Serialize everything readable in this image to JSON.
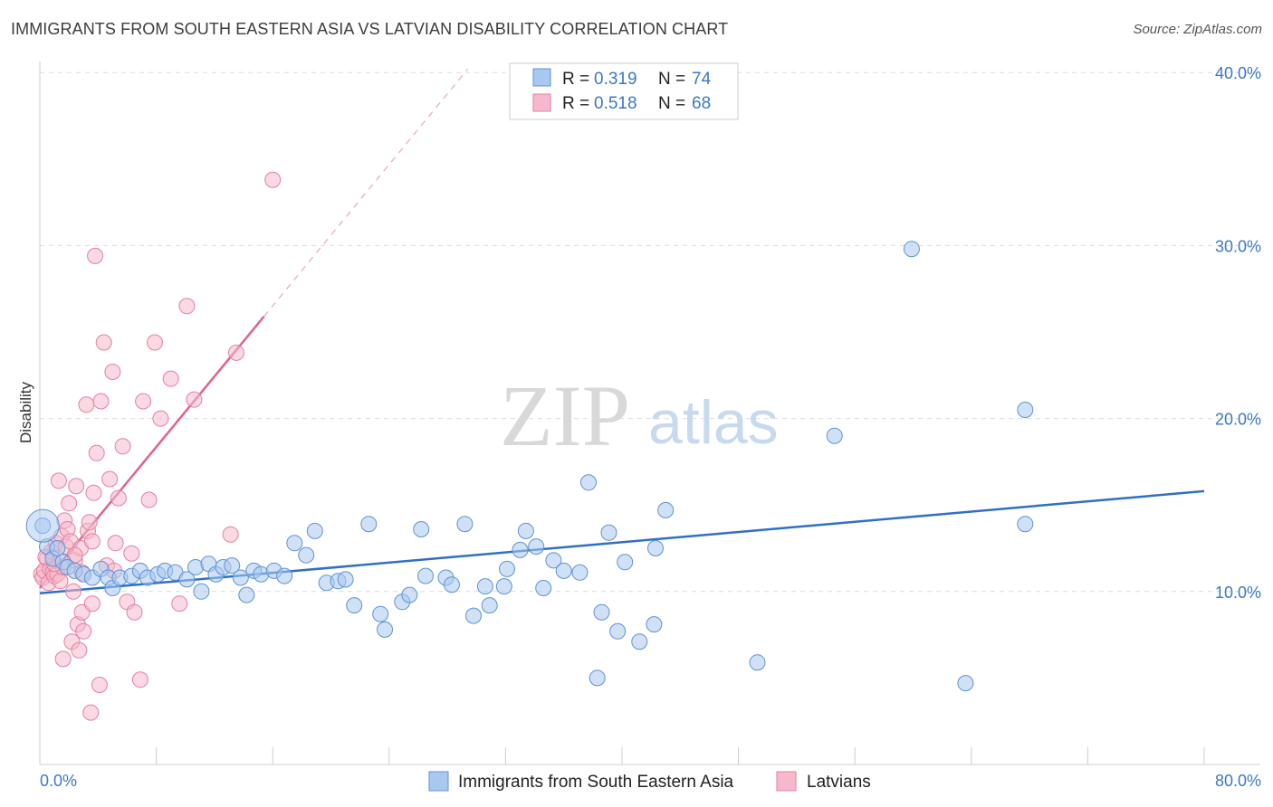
{
  "header": {
    "title": "IMMIGRANTS FROM SOUTH EASTERN ASIA VS LATVIAN DISABILITY CORRELATION CHART",
    "source": "Source: ZipAtlas.com"
  },
  "watermark": {
    "part1": "ZIP",
    "part2": "atlas"
  },
  "legend_top": {
    "rows": [
      {
        "r_label": "R = ",
        "r_value": "0.319",
        "n_label": "N = ",
        "n_value": "74"
      },
      {
        "r_label": "R = ",
        "r_value": "0.518",
        "n_label": "N = ",
        "n_value": "68"
      }
    ]
  },
  "colors": {
    "blue_fill": "#a9c8ef",
    "blue_stroke": "#5d93d6",
    "blue_line": "#2f6fc9",
    "pink_fill": "#f6b9cc",
    "pink_stroke": "#e57fa1",
    "pink_line": "#e0628d",
    "grid": "#dcdcdc",
    "tick_text": "#3a78c9"
  },
  "chart_data": {
    "type": "scatter",
    "title": "IMMIGRANTS FROM SOUTH EASTERN ASIA VS LATVIAN DISABILITY CORRELATION CHART",
    "xlabel": "",
    "ylabel": "Disability",
    "xlim": [
      0,
      80
    ],
    "ylim": [
      0,
      42
    ],
    "x_tick_labels": [
      "0.0%",
      "80.0%"
    ],
    "y_ticks": [
      10,
      20,
      30,
      40
    ],
    "y_tick_labels": [
      "10.0%",
      "20.0%",
      "30.0%",
      "40.0%"
    ],
    "grid": true,
    "legend_position": "bottom",
    "series": [
      {
        "name": "Immigrants from South Eastern Asia",
        "color": "#a9c8ef",
        "trend": {
          "x": [
            0,
            80
          ],
          "y": [
            9.9,
            15.8
          ]
        },
        "points": [
          [
            0.2,
            13.8
          ],
          [
            0.5,
            12.6
          ],
          [
            0.9,
            11.9
          ],
          [
            1.2,
            12.5
          ],
          [
            1.6,
            11.7
          ],
          [
            1.9,
            11.4
          ],
          [
            2.4,
            11.2
          ],
          [
            3.0,
            11.0
          ],
          [
            3.6,
            10.8
          ],
          [
            4.2,
            11.3
          ],
          [
            4.7,
            10.8
          ],
          [
            5.0,
            10.2
          ],
          [
            5.5,
            10.8
          ],
          [
            6.3,
            10.9
          ],
          [
            6.9,
            11.2
          ],
          [
            7.4,
            10.8
          ],
          [
            8.1,
            11.0
          ],
          [
            8.6,
            11.2
          ],
          [
            9.3,
            11.1
          ],
          [
            10.1,
            10.7
          ],
          [
            10.7,
            11.4
          ],
          [
            11.1,
            10.0
          ],
          [
            11.6,
            11.6
          ],
          [
            12.1,
            11.0
          ],
          [
            12.6,
            11.4
          ],
          [
            13.2,
            11.5
          ],
          [
            13.8,
            10.8
          ],
          [
            14.2,
            9.8
          ],
          [
            14.7,
            11.2
          ],
          [
            15.2,
            11.0
          ],
          [
            16.1,
            11.2
          ],
          [
            16.8,
            10.9
          ],
          [
            17.5,
            12.8
          ],
          [
            18.3,
            12.1
          ],
          [
            18.9,
            13.5
          ],
          [
            19.7,
            10.5
          ],
          [
            20.5,
            10.6
          ],
          [
            21.0,
            10.7
          ],
          [
            21.6,
            9.2
          ],
          [
            22.6,
            13.9
          ],
          [
            23.4,
            8.7
          ],
          [
            23.7,
            7.8
          ],
          [
            24.9,
            9.4
          ],
          [
            25.4,
            9.8
          ],
          [
            26.5,
            10.9
          ],
          [
            26.2,
            13.6
          ],
          [
            27.9,
            10.8
          ],
          [
            28.3,
            10.4
          ],
          [
            29.2,
            13.9
          ],
          [
            29.8,
            8.6
          ],
          [
            30.6,
            10.3
          ],
          [
            30.9,
            9.2
          ],
          [
            31.9,
            10.3
          ],
          [
            32.1,
            11.3
          ],
          [
            33.0,
            12.4
          ],
          [
            33.4,
            13.5
          ],
          [
            34.1,
            12.6
          ],
          [
            34.6,
            10.2
          ],
          [
            35.3,
            11.8
          ],
          [
            36.0,
            11.2
          ],
          [
            37.1,
            11.1
          ],
          [
            37.7,
            16.3
          ],
          [
            38.6,
            8.8
          ],
          [
            38.3,
            5.0
          ],
          [
            39.1,
            13.4
          ],
          [
            39.7,
            7.7
          ],
          [
            40.2,
            11.7
          ],
          [
            41.2,
            7.1
          ],
          [
            42.2,
            8.1
          ],
          [
            42.3,
            12.5
          ],
          [
            43.0,
            14.7
          ],
          [
            49.3,
            5.9
          ],
          [
            54.6,
            19.0
          ],
          [
            63.6,
            4.7
          ],
          [
            67.7,
            13.9
          ],
          [
            59.9,
            29.8
          ],
          [
            67.7,
            20.5
          ]
        ]
      },
      {
        "name": "Latvians",
        "color": "#f6b9cc",
        "trend": {
          "x": [
            0,
            15.4
          ],
          "y": [
            10.2,
            25.9
          ]
        },
        "trend_dashed": {
          "x": [
            15.4,
            29.4
          ],
          "y": [
            25.9,
            40.2
          ]
        },
        "points": [
          [
            0.1,
            11.0
          ],
          [
            0.2,
            10.8
          ],
          [
            0.3,
            11.2
          ],
          [
            0.5,
            11.9
          ],
          [
            0.6,
            10.5
          ],
          [
            0.7,
            11.3
          ],
          [
            0.8,
            12.3
          ],
          [
            0.9,
            11.1
          ],
          [
            1.0,
            10.9
          ],
          [
            1.1,
            12.8
          ],
          [
            1.2,
            11.0
          ],
          [
            1.3,
            16.4
          ],
          [
            1.4,
            10.6
          ],
          [
            1.5,
            13.2
          ],
          [
            1.6,
            11.4
          ],
          [
            1.7,
            14.1
          ],
          [
            1.8,
            12.6
          ],
          [
            1.9,
            13.6
          ],
          [
            2.0,
            15.1
          ],
          [
            2.1,
            12.9
          ],
          [
            2.2,
            7.1
          ],
          [
            2.3,
            10.0
          ],
          [
            2.4,
            11.8
          ],
          [
            2.5,
            16.1
          ],
          [
            2.6,
            8.1
          ],
          [
            2.7,
            6.6
          ],
          [
            2.8,
            12.5
          ],
          [
            2.9,
            8.8
          ],
          [
            3.0,
            7.7
          ],
          [
            3.2,
            20.8
          ],
          [
            3.3,
            13.5
          ],
          [
            3.4,
            14.0
          ],
          [
            3.5,
            3.0
          ],
          [
            3.6,
            9.3
          ],
          [
            3.7,
            15.7
          ],
          [
            3.9,
            18.0
          ],
          [
            4.1,
            4.6
          ],
          [
            4.2,
            21.0
          ],
          [
            4.4,
            24.4
          ],
          [
            4.6,
            11.5
          ],
          [
            4.8,
            16.5
          ],
          [
            5.0,
            22.7
          ],
          [
            5.2,
            12.8
          ],
          [
            5.4,
            15.4
          ],
          [
            5.7,
            18.4
          ],
          [
            6.0,
            9.4
          ],
          [
            6.3,
            12.2
          ],
          [
            6.5,
            8.8
          ],
          [
            6.9,
            4.9
          ],
          [
            7.1,
            21.0
          ],
          [
            7.5,
            15.3
          ],
          [
            7.9,
            24.4
          ],
          [
            8.3,
            20.0
          ],
          [
            9.0,
            22.3
          ],
          [
            9.6,
            9.3
          ],
          [
            10.1,
            26.5
          ],
          [
            10.6,
            21.1
          ],
          [
            13.1,
            13.3
          ],
          [
            13.5,
            23.8
          ],
          [
            16.0,
            33.8
          ],
          [
            3.8,
            29.4
          ],
          [
            1.6,
            6.1
          ],
          [
            2.9,
            11.1
          ],
          [
            5.1,
            11.2
          ],
          [
            1.0,
            11.6
          ],
          [
            0.4,
            12.0
          ],
          [
            2.4,
            12.1
          ],
          [
            3.6,
            12.9
          ]
        ]
      }
    ]
  }
}
